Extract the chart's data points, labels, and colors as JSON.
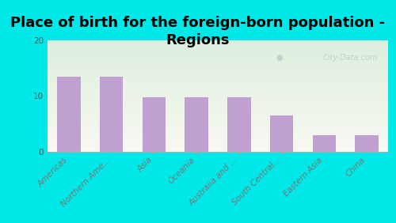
{
  "title": "Place of birth for the foreign-born population -\nRegions",
  "categories": [
    "Americas",
    "Northern Ame...",
    "Asia",
    "Oceania",
    "Australia and ...",
    "South Central...",
    "Eastern Asia",
    "China"
  ],
  "values": [
    13.5,
    13.5,
    9.8,
    9.8,
    9.8,
    6.5,
    3.0,
    3.0
  ],
  "bar_color": "#c0a0d0",
  "background_outer": "#00e8e8",
  "plot_bg_top_left": "#ddeedd",
  "plot_bg_bottom_right": "#f5f5ee",
  "ylim": [
    0,
    20
  ],
  "yticks": [
    0,
    10,
    20
  ],
  "title_fontsize": 13,
  "tick_fontsize": 7.5,
  "watermark": "City-Data.com"
}
